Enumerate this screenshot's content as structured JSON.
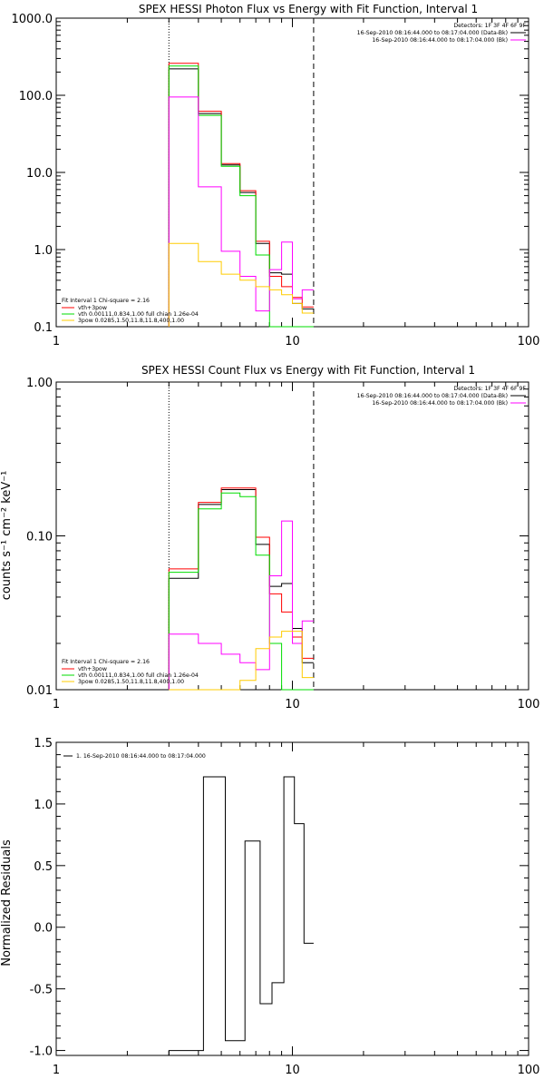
{
  "chart_data": [
    {
      "type": "line",
      "title": "SPEX HESSI Photon Flux vs Energy with Fit Function, Interval 1",
      "ylabel": "",
      "xscale": "log",
      "yscale": "log",
      "xlim": [
        1,
        100
      ],
      "ylim": [
        0.1,
        1000
      ],
      "xticks": [
        1,
        10,
        100
      ],
      "xtick_labels": [
        "1",
        "10",
        "100"
      ],
      "yticks": [
        0.1,
        1,
        10,
        100,
        1000
      ],
      "ytick_labels": [
        "0.1",
        "1.0",
        "10.0",
        "100.0",
        "1000.0"
      ],
      "ref_lines": [
        {
          "x": 3.0,
          "style": "dotted"
        },
        {
          "x": 12.3,
          "style": "dashed"
        }
      ],
      "top_legend": {
        "placement": "top-right",
        "lines": [
          "Detectors: 1F 3F 4F 6F 9F",
          "16-Sep-2010 08:16:44.000 to 08:17:04.000 (Data-Bk)",
          "16-Sep-2010 08:16:44.000 to 08:17:04.000 (Bk)"
        ],
        "colors": [
          "",
          "#000000",
          "#ff00ff"
        ]
      },
      "fit_legend": {
        "placement": "bottom-left",
        "header": "Fit Interval 1    Chi-square = 2.16",
        "lines": [
          "vth+3pow",
          "vth 0.00111,0.834,1.00   full chian 1.26e-04",
          "3pow 0.0285,1.50,11.8,11.8,400,1.00"
        ],
        "colors": [
          "#ff0000",
          "#00dd00",
          "#ffcc00"
        ]
      },
      "edges": [
        3.0,
        4.0,
        5.0,
        6.0,
        7.0,
        8.0,
        9.0,
        10.0,
        11.0,
        12.3
      ],
      "series": [
        {
          "name": "",
          "color": "#000000",
          "values": [
            220,
            58,
            12.5,
            5.5,
            1.2,
            0.5,
            0.48,
            0.2,
            0.17
          ]
        },
        {
          "name": "",
          "color": "#ff0000",
          "values": [
            260,
            62,
            13,
            5.8,
            1.28,
            0.45,
            0.33,
            0.24,
            0.18
          ]
        },
        {
          "name": "",
          "color": "#00dd00",
          "values": [
            240,
            55,
            12,
            5.0,
            0.85,
            0.1,
            0.1,
            0.1,
            0.1
          ]
        },
        {
          "name": "",
          "color": "#ff00ff",
          "values": [
            95,
            6.5,
            0.95,
            0.45,
            0.16,
            0.55,
            1.25,
            0.23,
            0.3
          ]
        },
        {
          "name": "",
          "color": "#ffcc00",
          "values": [
            1.2,
            0.7,
            0.48,
            0.4,
            0.33,
            0.3,
            0.26,
            0.2,
            0.15
          ]
        }
      ]
    },
    {
      "type": "line",
      "title": "SPEX HESSI Count Flux vs Energy with Fit Function, Interval 1",
      "ylabel": "counts s⁻¹ cm⁻² keV⁻¹",
      "xscale": "log",
      "yscale": "log",
      "xlim": [
        1,
        100
      ],
      "ylim": [
        0.01,
        1.0
      ],
      "xticks": [
        1,
        10,
        100
      ],
      "xtick_labels": [
        "1",
        "10",
        "100"
      ],
      "yticks": [
        0.01,
        0.1,
        1.0
      ],
      "ytick_labels": [
        "0.01",
        "0.10",
        "1.00"
      ],
      "ref_lines": [
        {
          "x": 3.0,
          "style": "dotted"
        },
        {
          "x": 12.3,
          "style": "dashed"
        }
      ],
      "top_legend": {
        "placement": "top-right",
        "lines": [
          "Detectors: 1F 3F 4F 6F 9F",
          "16-Sep-2010 08:16:44.000 to 08:17:04.000 (Data-Bk)",
          "16-Sep-2010 08:16:44.000 to 08:17:04.000 (Bk)"
        ],
        "colors": [
          "",
          "#000000",
          "#ff00ff"
        ]
      },
      "fit_legend": {
        "placement": "bottom-left",
        "header": "Fit Interval 1    Chi-square = 2.16",
        "lines": [
          "vth+3pow",
          "vth 0.00111,0.834,1.00   full chian 1.26e-04",
          "3pow 0.0285,1.50,11.8,11.8,400,1.00"
        ],
        "colors": [
          "#ff0000",
          "#00dd00",
          "#ffcc00"
        ]
      },
      "edges": [
        3.0,
        4.0,
        5.0,
        6.0,
        7.0,
        8.0,
        9.0,
        10.0,
        11.0,
        12.3
      ],
      "series": [
        {
          "name": "",
          "color": "#000000",
          "values": [
            0.053,
            0.16,
            0.2,
            0.2,
            0.088,
            0.047,
            0.049,
            0.025,
            0.015
          ]
        },
        {
          "name": "",
          "color": "#ff0000",
          "values": [
            0.061,
            0.165,
            0.205,
            0.205,
            0.098,
            0.042,
            0.032,
            0.022,
            0.016
          ]
        },
        {
          "name": "",
          "color": "#00dd00",
          "values": [
            0.058,
            0.15,
            0.19,
            0.18,
            0.075,
            0.02,
            0.01,
            0.01,
            0.01
          ]
        },
        {
          "name": "",
          "color": "#ff00ff",
          "values": [
            0.023,
            0.02,
            0.017,
            0.015,
            0.0135,
            0.055,
            0.125,
            0.02,
            0.028
          ]
        },
        {
          "name": "",
          "color": "#ffcc00",
          "values": [
            0.01,
            0.01,
            0.01,
            0.0115,
            0.0185,
            0.022,
            0.024,
            0.024,
            0.012
          ]
        }
      ]
    },
    {
      "type": "line",
      "title": "",
      "ylabel": "Normalized Residuals",
      "xscale": "log",
      "yscale": "linear",
      "xlim": [
        1,
        100
      ],
      "ylim": [
        -1.04,
        1.5
      ],
      "xticks": [
        1,
        10,
        100
      ],
      "xtick_labels": [
        "1",
        "10",
        "100"
      ],
      "yticks": [
        -1.0,
        -0.5,
        0.0,
        0.5,
        1.0,
        1.5
      ],
      "ytick_labels": [
        "-1.0",
        "-0.5",
        "0.0",
        "0.5",
        "1.0",
        "1.5"
      ],
      "legend": {
        "placement": "top-left",
        "text": "1. 16-Sep-2010 08:16:44.000 to 08:17:04.000"
      },
      "edges": [
        3.0,
        4.2,
        5.2,
        6.3,
        7.3,
        8.2,
        9.2,
        10.2,
        11.2,
        12.3
      ],
      "series": [
        {
          "name": "",
          "color": "#000000",
          "values": [
            -1.0,
            1.22,
            -0.92,
            0.7,
            -0.62,
            -0.45,
            1.22,
            0.84,
            -0.13
          ]
        }
      ]
    }
  ]
}
